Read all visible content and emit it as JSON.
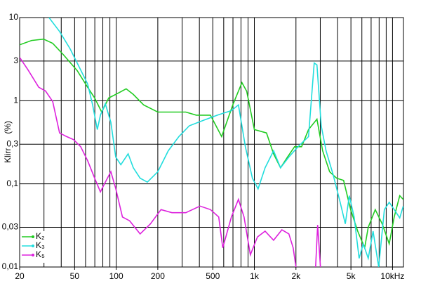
{
  "chart_data": {
    "type": "line",
    "ylabel": "Klirr      (%)",
    "xscale": "log",
    "yscale": "log",
    "grid": true,
    "legend": "lower left",
    "xlim": [
      20,
      12000
    ],
    "ylim": [
      0.01,
      10
    ],
    "xticks": [
      20,
      50,
      100,
      200,
      500,
      {
        "value": 1000,
        "label": "1k"
      },
      {
        "value": 2000,
        "label": "2k"
      },
      {
        "value": 5000,
        "label": "5k"
      },
      {
        "value": 10000,
        "label": "10kHz"
      }
    ],
    "xgrid": [
      20,
      30,
      40,
      50,
      60,
      70,
      80,
      90,
      100,
      200,
      300,
      400,
      500,
      600,
      700,
      800,
      900,
      1000,
      2000,
      3000,
      4000,
      5000,
      6000,
      7000,
      8000,
      9000,
      10000
    ],
    "yticks": [
      {
        "value": 10,
        "label": "10"
      },
      {
        "value": 3,
        "label": "3"
      },
      {
        "value": 1,
        "label": "1"
      },
      {
        "value": 0.3,
        "label": "0,3"
      },
      {
        "value": 0.1,
        "label": "0,1"
      },
      {
        "value": 0.03,
        "label": "0,03"
      },
      {
        "value": 0.01,
        "label": "0,01"
      }
    ],
    "series": [
      {
        "name": "K₂",
        "color": "#22cc22",
        "x": [
          20,
          24.4,
          29.8,
          34.7,
          41.3,
          52.2,
          62.1,
          69.8,
          78.5,
          88.3,
          99.2,
          118,
          133,
          158,
          200,
          253,
          319,
          380,
          481,
          580,
          700,
          813,
          880,
          1000,
          1224,
          1377,
          1546,
          1738,
          1954,
          2197,
          2467,
          2838,
          3119,
          3506,
          3937,
          4427,
          4977,
          5595,
          6286,
          6670,
          7497,
          8417,
          9463,
          10280,
          11280,
          11960
        ],
        "values": [
          4.7,
          5.3,
          5.5,
          4.9,
          3.6,
          2.3,
          1.45,
          1.08,
          0.73,
          1.08,
          1.19,
          1.39,
          1.19,
          0.89,
          0.73,
          0.73,
          0.73,
          0.67,
          0.67,
          0.37,
          0.9,
          1.65,
          1.3,
          0.45,
          0.41,
          0.23,
          0.156,
          0.21,
          0.28,
          0.28,
          0.45,
          0.6,
          0.25,
          0.14,
          0.117,
          0.11,
          0.049,
          0.027,
          0.017,
          0.03,
          0.049,
          0.033,
          0.019,
          0.04,
          0.072,
          0.065
        ]
      },
      {
        "name": "K₃",
        "color": "#22dddd",
        "x": [
          32.6,
          38.9,
          46.4,
          55.3,
          62.1,
          67.5,
          73,
          76.8,
          83.4,
          91.5,
          99.2,
          108,
          122,
          133,
          149,
          168,
          200,
          238,
          284,
          338,
          428,
          540,
          682,
          767,
          861,
          968,
          1064,
          1196,
          1377,
          1546,
          1778,
          2070,
          2467,
          2710,
          2838,
          3047,
          3305,
          3716,
          4178,
          4550,
          4866,
          5275,
          5729,
          6139,
          6670,
          7230,
          7940,
          8728,
          9463,
          10280,
          11280,
          11960
        ],
        "values": [
          10,
          6.8,
          4.2,
          2.34,
          1.59,
          0.89,
          0.45,
          0.67,
          0.92,
          0.55,
          0.21,
          0.17,
          0.23,
          0.156,
          0.117,
          0.105,
          0.14,
          0.25,
          0.37,
          0.5,
          0.58,
          0.67,
          0.76,
          0.89,
          0.28,
          0.117,
          0.087,
          0.156,
          0.25,
          0.156,
          0.21,
          0.28,
          0.37,
          2.84,
          2.7,
          0.5,
          0.25,
          0.129,
          0.06,
          0.033,
          0.072,
          0.04,
          0.0127,
          0.019,
          0.0127,
          0.027,
          0.01,
          0.049,
          0.06,
          0.049,
          0.039,
          0.054
        ]
      },
      {
        "name": "K₅",
        "color": "#dd22dd",
        "x": [
          20,
          23,
          27.5,
          30.8,
          34.7,
          38.9,
          43.8,
          49.2,
          55.3,
          62.1,
          69.8,
          76.8,
          83.4,
          91.5,
          99.2,
          111,
          125,
          149,
          177,
          211,
          253,
          319,
          404,
          481,
          552,
          591,
          682,
          767,
          842,
          935,
          1052,
          1196,
          1377,
          1582,
          1778,
          1910,
          2000,
          2400,
          2774,
          2870,
          3010
        ],
        "values": [
          3.32,
          2.34,
          1.45,
          1.31,
          0.98,
          0.41,
          0.37,
          0.34,
          0.28,
          0.19,
          0.117,
          0.08,
          0.105,
          0.14,
          0.088,
          0.04,
          0.036,
          0.025,
          0.033,
          0.049,
          0.045,
          0.045,
          0.054,
          0.049,
          0.04,
          0.017,
          0.04,
          0.065,
          0.04,
          0.014,
          0.023,
          0.027,
          0.021,
          0.028,
          0.025,
          0.017,
          0.01,
          null,
          0.01,
          0.032,
          0.01
        ]
      }
    ]
  }
}
